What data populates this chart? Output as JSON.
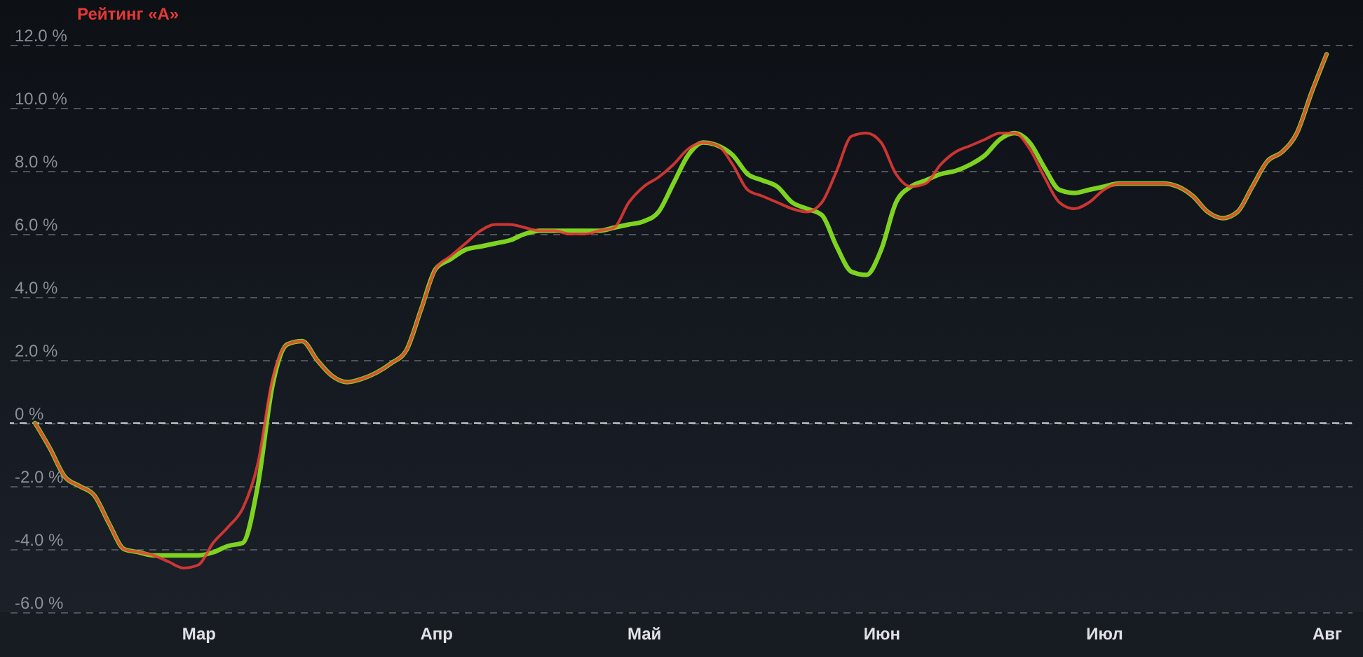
{
  "chart_data": {
    "type": "line",
    "title": "Рейтинг «А»",
    "categories": [
      null,
      null,
      null,
      null,
      null,
      null,
      null,
      null,
      null,
      null,
      null,
      "Мар",
      null,
      null,
      null,
      null,
      null,
      null,
      null,
      null,
      null,
      null,
      null,
      null,
      null,
      null,
      null,
      "Апр",
      null,
      null,
      null,
      null,
      null,
      null,
      null,
      null,
      null,
      null,
      null,
      null,
      null,
      "Май",
      null,
      null,
      null,
      null,
      null,
      null,
      null,
      null,
      null,
      null,
      null,
      null,
      null,
      null,
      null,
      "Июн",
      null,
      null,
      null,
      null,
      null,
      null,
      null,
      null,
      null,
      null,
      null,
      null,
      null,
      null,
      "Июл",
      null,
      null,
      null,
      null,
      null,
      null,
      null,
      null,
      null,
      null,
      null,
      null,
      null,
      null,
      "Авг"
    ],
    "ylim": [
      -6,
      12
    ],
    "yticks": [
      {
        "value": -6,
        "label": "-6.0 %"
      },
      {
        "value": -4,
        "label": "-4.0 %"
      },
      {
        "value": -2,
        "label": "-2.0 %"
      },
      {
        "value": 0,
        "label": "0 %"
      },
      {
        "value": 2,
        "label": "2.0 %"
      },
      {
        "value": 4,
        "label": "4.0 %"
      },
      {
        "value": 6,
        "label": "6.0 %"
      },
      {
        "value": 8,
        "label": "8.0 %"
      },
      {
        "value": 10,
        "label": "10.0 %"
      },
      {
        "value": 12,
        "label": "12.0 %"
      }
    ],
    "grid": "y",
    "ref_lines": [
      {
        "axis": "y",
        "value": 0,
        "color": "#c4c7cc",
        "line_style": "dashed"
      }
    ],
    "series": [
      {
        "color": "#7ed321",
        "values": [
          0.0,
          -0.8,
          -1.7,
          -2.0,
          -2.3,
          -3.2,
          -4.0,
          -4.1,
          -4.2,
          -4.2,
          -4.2,
          -4.2,
          -4.1,
          -3.9,
          -3.8,
          -2.0,
          1.2,
          2.5,
          2.6,
          2.0,
          1.5,
          1.3,
          1.4,
          1.6,
          1.9,
          2.3,
          3.6,
          4.9,
          5.2,
          5.5,
          5.6,
          5.7,
          5.8,
          6.0,
          6.1,
          6.1,
          6.1,
          6.1,
          6.1,
          6.2,
          6.3,
          6.4,
          6.7,
          7.6,
          8.5,
          8.9,
          8.8,
          8.5,
          7.9,
          7.7,
          7.5,
          7.0,
          6.8,
          6.6,
          5.6,
          4.8,
          4.7,
          5.5,
          7.0,
          7.5,
          7.7,
          7.9,
          8.0,
          8.2,
          8.5,
          9.0,
          9.2,
          8.9,
          8.1,
          7.4,
          7.3,
          7.4,
          7.5,
          7.6,
          7.6,
          7.6,
          7.6,
          7.5,
          7.2,
          6.7,
          6.5,
          6.7,
          7.5,
          8.3,
          8.6,
          9.2,
          10.5,
          11.7
        ]
      },
      {
        "color": "#ec3b36",
        "values": [
          0.0,
          -0.8,
          -1.7,
          -2.0,
          -2.3,
          -3.2,
          -4.0,
          -4.1,
          -4.2,
          -4.4,
          -4.6,
          -4.5,
          -3.8,
          -3.3,
          -2.7,
          -1.3,
          1.4,
          2.5,
          2.6,
          2.0,
          1.5,
          1.3,
          1.4,
          1.6,
          1.9,
          2.3,
          3.6,
          4.9,
          5.3,
          5.7,
          6.1,
          6.3,
          6.3,
          6.2,
          6.1,
          6.1,
          6.0,
          6.0,
          6.1,
          6.2,
          7.0,
          7.5,
          7.8,
          8.2,
          8.7,
          8.9,
          8.8,
          8.2,
          7.4,
          7.2,
          7.0,
          6.8,
          6.7,
          7.0,
          8.0,
          9.1,
          9.2,
          8.9,
          7.9,
          7.5,
          7.6,
          8.2,
          8.6,
          8.8,
          9.0,
          9.2,
          9.2,
          8.7,
          7.8,
          7.0,
          6.8,
          7.0,
          7.4,
          7.6,
          7.6,
          7.6,
          7.6,
          7.5,
          7.2,
          6.7,
          6.5,
          6.7,
          7.5,
          8.3,
          8.6,
          9.2,
          10.5,
          11.7
        ]
      }
    ]
  }
}
